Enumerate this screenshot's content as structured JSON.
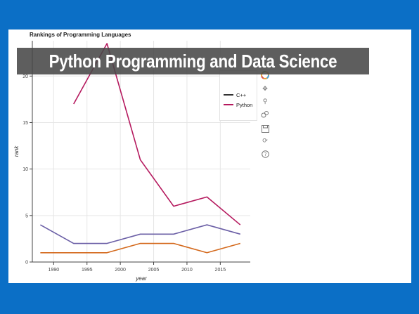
{
  "banner": {
    "text": "Python Programming and Data Science"
  },
  "chart_data": {
    "type": "line",
    "title": "Rankings of Programming Languages",
    "xlabel": "year",
    "ylabel": "rank",
    "xlim": [
      1986.8,
      2019.5
    ],
    "ylim": [
      0,
      23.8
    ],
    "xticks": [
      1990,
      1995,
      2000,
      2005,
      2010,
      2015
    ],
    "yticks": [
      0,
      5,
      10,
      15,
      20
    ],
    "grid": true,
    "legend_position": "top-right",
    "series": [
      {
        "name": "",
        "color": "#6b5fa6",
        "x": [
          1988,
          1993,
          1998,
          2003,
          2008,
          2013,
          2018
        ],
        "y": [
          4,
          2,
          2,
          3,
          3,
          4,
          3
        ]
      },
      {
        "name": "",
        "color": "#d4691c",
        "x": [
          1988,
          1993,
          1998,
          2003,
          2008,
          2013,
          2018
        ],
        "y": [
          1,
          1,
          1,
          2,
          2,
          1,
          2
        ]
      },
      {
        "name": "Python",
        "color": "#b5195e",
        "x": [
          1993,
          1998,
          2003,
          2008,
          2013,
          2018
        ],
        "y": [
          17,
          23.5,
          11,
          6,
          7,
          4
        ]
      }
    ],
    "legend": [
      {
        "label": "C++",
        "color": "#333333"
      },
      {
        "label": "Python",
        "color": "#b5195e"
      }
    ]
  },
  "toolbar": {
    "tools": [
      "logo-icon",
      "pan-icon",
      "zoom-icon",
      "wheel-zoom-icon",
      "save-icon",
      "reset-icon",
      "help-icon"
    ]
  }
}
